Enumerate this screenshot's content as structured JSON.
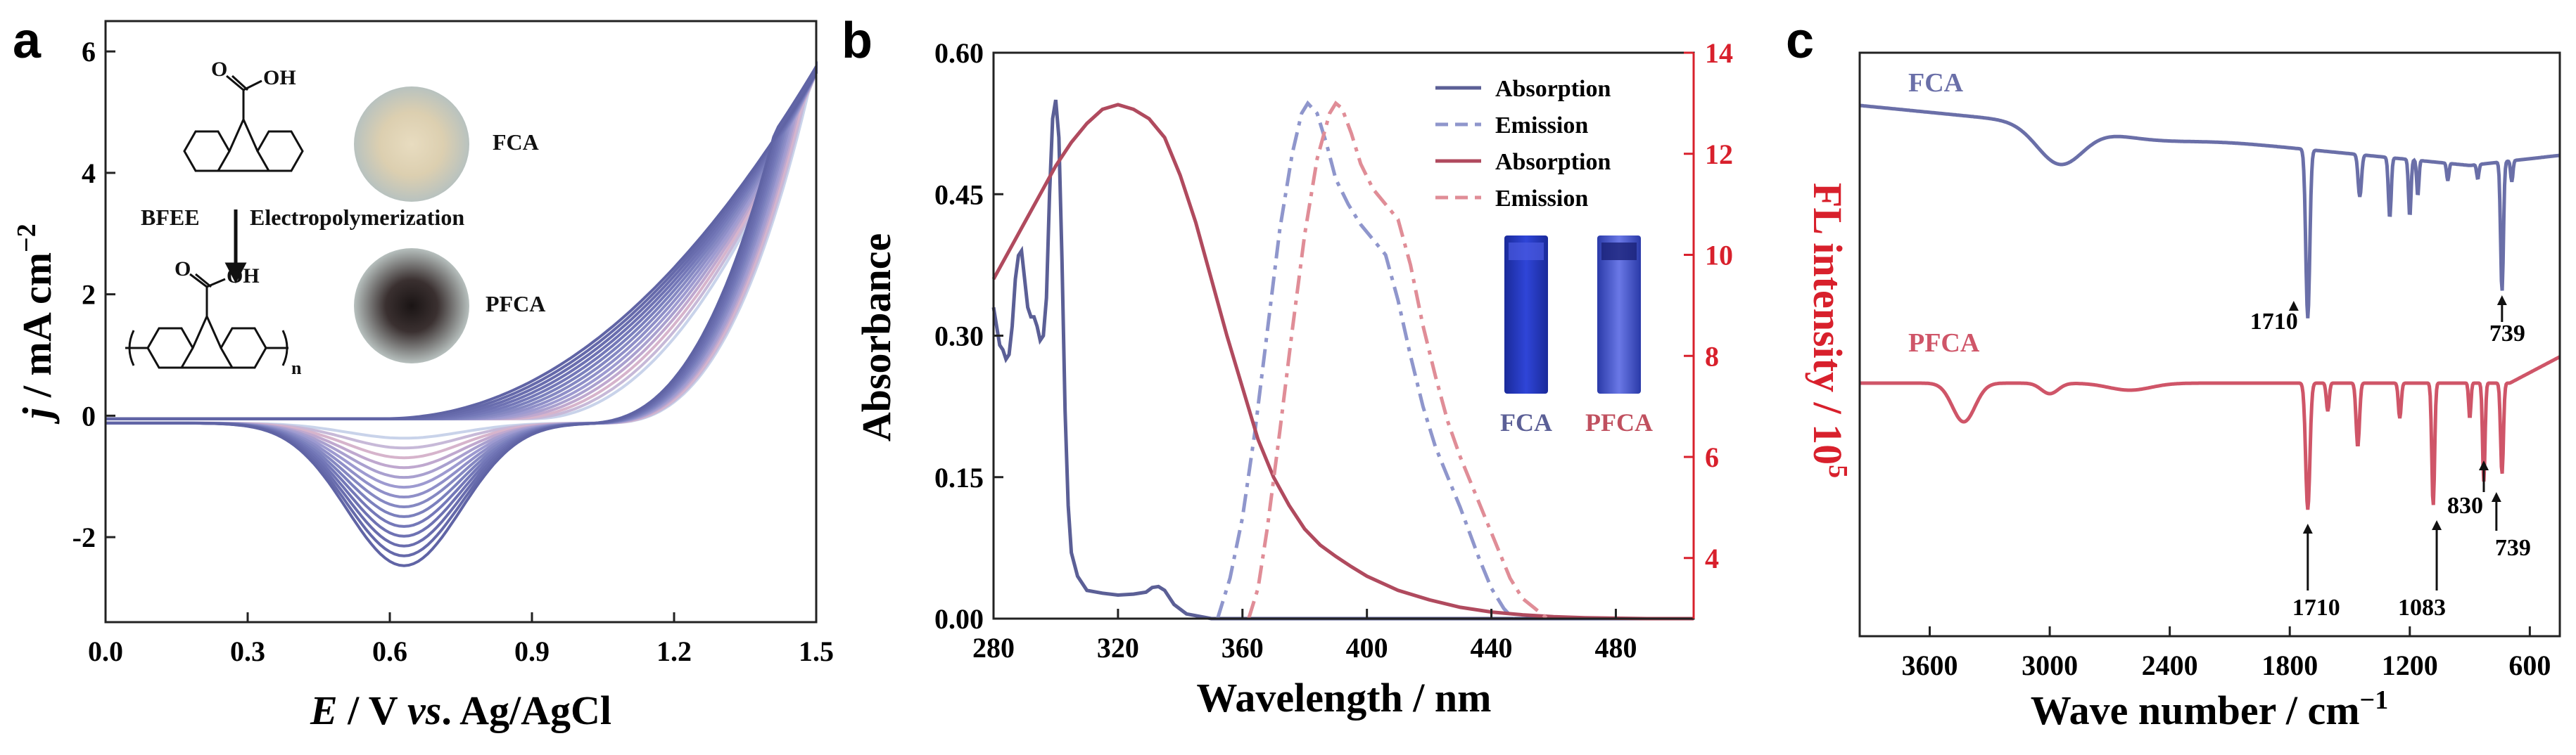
{
  "chart_data": [
    {
      "panel": "a",
      "type": "line",
      "title": "",
      "xlabel_parts": [
        "E",
        " / V ",
        "vs",
        ". Ag/AgCl"
      ],
      "ylabel_parts": [
        "j",
        " / mA cm",
        "−2"
      ],
      "xlim": [
        0,
        1.5
      ],
      "ylim": [
        -3.4,
        6.5
      ],
      "xticks": [
        "0.0",
        "0.3",
        "0.6",
        "0.9",
        "1.2",
        "1.5"
      ],
      "xtick_values": [
        0,
        0.3,
        0.6,
        0.9,
        1.2,
        1.5
      ],
      "yticks": [
        "-2",
        "0",
        "2",
        "4",
        "6"
      ],
      "ytick_values": [
        -2,
        0,
        2,
        4,
        6
      ],
      "cycles": 14,
      "cycle_colors": [
        "#c9d3ea",
        "#c7b9d8",
        "#d6b4cc",
        "#bfa8cf",
        "#a9a0cf",
        "#9d9ad0",
        "#8f8fc8",
        "#8588c2",
        "#7b80bd",
        "#7478b8",
        "#6e72b3",
        "#696dae",
        "#6569aa",
        "#6064a5"
      ],
      "inset": {
        "monomer_label": "FCA",
        "polymer_label": "PFCA",
        "solvent_label": "BFEE",
        "process_label": "Electropolymerization",
        "cooh_label": "O",
        "oh_label": "OH",
        "n_label": "n"
      }
    },
    {
      "panel": "b",
      "type": "line",
      "xlabel": "Wavelength / nm",
      "ylabel": "Absorbance",
      "y2label_parts": [
        "FL intensity / 10",
        "5"
      ],
      "xlim": [
        280,
        505
      ],
      "ylim": [
        0,
        0.6
      ],
      "y2lim": [
        2.8,
        14
      ],
      "xticks": [
        "280",
        "320",
        "360",
        "400",
        "440",
        "480"
      ],
      "xtick_values": [
        280,
        320,
        360,
        400,
        440,
        480
      ],
      "yticks": [
        "0.00",
        "0.15",
        "0.30",
        "0.45",
        "0.60"
      ],
      "ytick_values": [
        0,
        0.15,
        0.3,
        0.45,
        0.6
      ],
      "y2ticks": [
        "4",
        "6",
        "8",
        "10",
        "12",
        "14"
      ],
      "y2tick_values": [
        4,
        6,
        8,
        10,
        12,
        14
      ],
      "legend": [
        {
          "name": "Absorption",
          "color": "#5b5f96",
          "style": "solid"
        },
        {
          "name": "Emission",
          "color": "#8f96cc",
          "style": "dashed"
        },
        {
          "name": "Absorption",
          "color": "#b04a5e",
          "style": "solid"
        },
        {
          "name": "Emission",
          "color": "#e08d97",
          "style": "dashed"
        }
      ],
      "inset_labels": [
        "FCA",
        "PFCA"
      ],
      "inset_label_colors": [
        "#5b5f96",
        "#c0505f"
      ],
      "series": [
        {
          "name": "FCA Absorption",
          "axis": "left",
          "color": "#5b5f96",
          "style": "solid",
          "points": [
            [
              280,
              0.33
            ],
            [
              281,
              0.31
            ],
            [
              282,
              0.29
            ],
            [
              283,
              0.285
            ],
            [
              284,
              0.275
            ],
            [
              285,
              0.28
            ],
            [
              286,
              0.31
            ],
            [
              287,
              0.36
            ],
            [
              288,
              0.385
            ],
            [
              289,
              0.39
            ],
            [
              290,
              0.36
            ],
            [
              291,
              0.33
            ],
            [
              292,
              0.32
            ],
            [
              293,
              0.32
            ],
            [
              294,
              0.31
            ],
            [
              295,
              0.295
            ],
            [
              296,
              0.3
            ],
            [
              297,
              0.34
            ],
            [
              298,
              0.45
            ],
            [
              299,
              0.53
            ],
            [
              300,
              0.55
            ],
            [
              301,
              0.51
            ],
            [
              302,
              0.38
            ],
            [
              303,
              0.22
            ],
            [
              304,
              0.12
            ],
            [
              305,
              0.07
            ],
            [
              307,
              0.045
            ],
            [
              310,
              0.03
            ],
            [
              315,
              0.027
            ],
            [
              320,
              0.025
            ],
            [
              325,
              0.026
            ],
            [
              329,
              0.028
            ],
            [
              331,
              0.033
            ],
            [
              333,
              0.034
            ],
            [
              335,
              0.03
            ],
            [
              338,
              0.015
            ],
            [
              342,
              0.005
            ],
            [
              350,
              0.0
            ],
            [
              505,
              0.0
            ]
          ]
        },
        {
          "name": "FCA Emission",
          "axis": "right",
          "color": "#8f96cc",
          "style": "dashed",
          "points": [
            [
              352,
              2.8
            ],
            [
              356,
              3.6
            ],
            [
              360,
              4.8
            ],
            [
              364,
              6.5
            ],
            [
              368,
              8.5
            ],
            [
              372,
              10.5
            ],
            [
              376,
              12.0
            ],
            [
              379,
              12.8
            ],
            [
              381,
              13.0
            ],
            [
              384,
              12.8
            ],
            [
              387,
              12.2
            ],
            [
              390,
              11.5
            ],
            [
              394,
              11.0
            ],
            [
              398,
              10.6
            ],
            [
              402,
              10.3
            ],
            [
              406,
              10.0
            ],
            [
              410,
              9.1
            ],
            [
              414,
              8.0
            ],
            [
              418,
              7.0
            ],
            [
              422,
              6.2
            ],
            [
              426,
              5.6
            ],
            [
              430,
              5.0
            ],
            [
              436,
              4.0
            ],
            [
              440,
              3.4
            ],
            [
              444,
              3.0
            ],
            [
              447,
              2.8
            ]
          ]
        },
        {
          "name": "PFCA Absorption",
          "axis": "left",
          "color": "#b04a5e",
          "style": "solid",
          "points": [
            [
              280,
              0.36
            ],
            [
              285,
              0.39
            ],
            [
              290,
              0.42
            ],
            [
              295,
              0.45
            ],
            [
              300,
              0.48
            ],
            [
              305,
              0.505
            ],
            [
              310,
              0.525
            ],
            [
              315,
              0.54
            ],
            [
              320,
              0.545
            ],
            [
              325,
              0.54
            ],
            [
              330,
              0.53
            ],
            [
              335,
              0.51
            ],
            [
              340,
              0.47
            ],
            [
              345,
              0.42
            ],
            [
              350,
              0.36
            ],
            [
              355,
              0.3
            ],
            [
              360,
              0.245
            ],
            [
              365,
              0.19
            ],
            [
              370,
              0.15
            ],
            [
              375,
              0.12
            ],
            [
              380,
              0.095
            ],
            [
              385,
              0.078
            ],
            [
              390,
              0.066
            ],
            [
              395,
              0.055
            ],
            [
              400,
              0.045
            ],
            [
              410,
              0.03
            ],
            [
              420,
              0.02
            ],
            [
              430,
              0.012
            ],
            [
              440,
              0.007
            ],
            [
              450,
              0.004
            ],
            [
              460,
              0.002
            ],
            [
              470,
              0.001
            ],
            [
              490,
              0.0
            ],
            [
              505,
              0.0
            ]
          ]
        },
        {
          "name": "PFCA Emission",
          "axis": "right",
          "color": "#e08d97",
          "style": "dashed",
          "points": [
            [
              362,
              2.8
            ],
            [
              365,
              3.4
            ],
            [
              368,
              4.6
            ],
            [
              372,
              6.5
            ],
            [
              376,
              8.5
            ],
            [
              380,
              10.4
            ],
            [
              384,
              11.9
            ],
            [
              388,
              12.8
            ],
            [
              390,
              13.0
            ],
            [
              392,
              12.9
            ],
            [
              395,
              12.4
            ],
            [
              398,
              11.8
            ],
            [
              402,
              11.3
            ],
            [
              406,
              11.0
            ],
            [
              410,
              10.7
            ],
            [
              414,
              9.8
            ],
            [
              418,
              8.6
            ],
            [
              422,
              7.6
            ],
            [
              426,
              6.7
            ],
            [
              430,
              6.0
            ],
            [
              434,
              5.4
            ],
            [
              438,
              4.8
            ],
            [
              442,
              4.2
            ],
            [
              446,
              3.6
            ],
            [
              450,
              3.2
            ],
            [
              454,
              3.0
            ],
            [
              458,
              2.8
            ]
          ]
        }
      ]
    },
    {
      "panel": "c",
      "type": "line",
      "xlabel_parts": [
        "Wave number / cm",
        "−1"
      ],
      "ylabel": "",
      "xlim": [
        3950,
        450
      ],
      "xticks": [
        "3600",
        "3000",
        "2400",
        "1800",
        "1200",
        "600"
      ],
      "xtick_values": [
        3600,
        3000,
        2400,
        1800,
        1200,
        600
      ],
      "series": [
        {
          "name": "FCA",
          "color": "#6a6fa8"
        },
        {
          "name": "PFCA",
          "color": "#cf5568"
        }
      ],
      "annotations": [
        {
          "series": "FCA",
          "wavenumber": 1710,
          "label": "1710"
        },
        {
          "series": "FCA",
          "wavenumber": 739,
          "label": "739"
        },
        {
          "series": "PFCA",
          "wavenumber": 1710,
          "label": "1710"
        },
        {
          "series": "PFCA",
          "wavenumber": 1083,
          "label": "1083"
        },
        {
          "series": "PFCA",
          "wavenumber": 830,
          "label": "830"
        },
        {
          "series": "PFCA",
          "wavenumber": 739,
          "label": "739"
        }
      ]
    }
  ],
  "panel_letters": [
    "a",
    "b",
    "c"
  ]
}
